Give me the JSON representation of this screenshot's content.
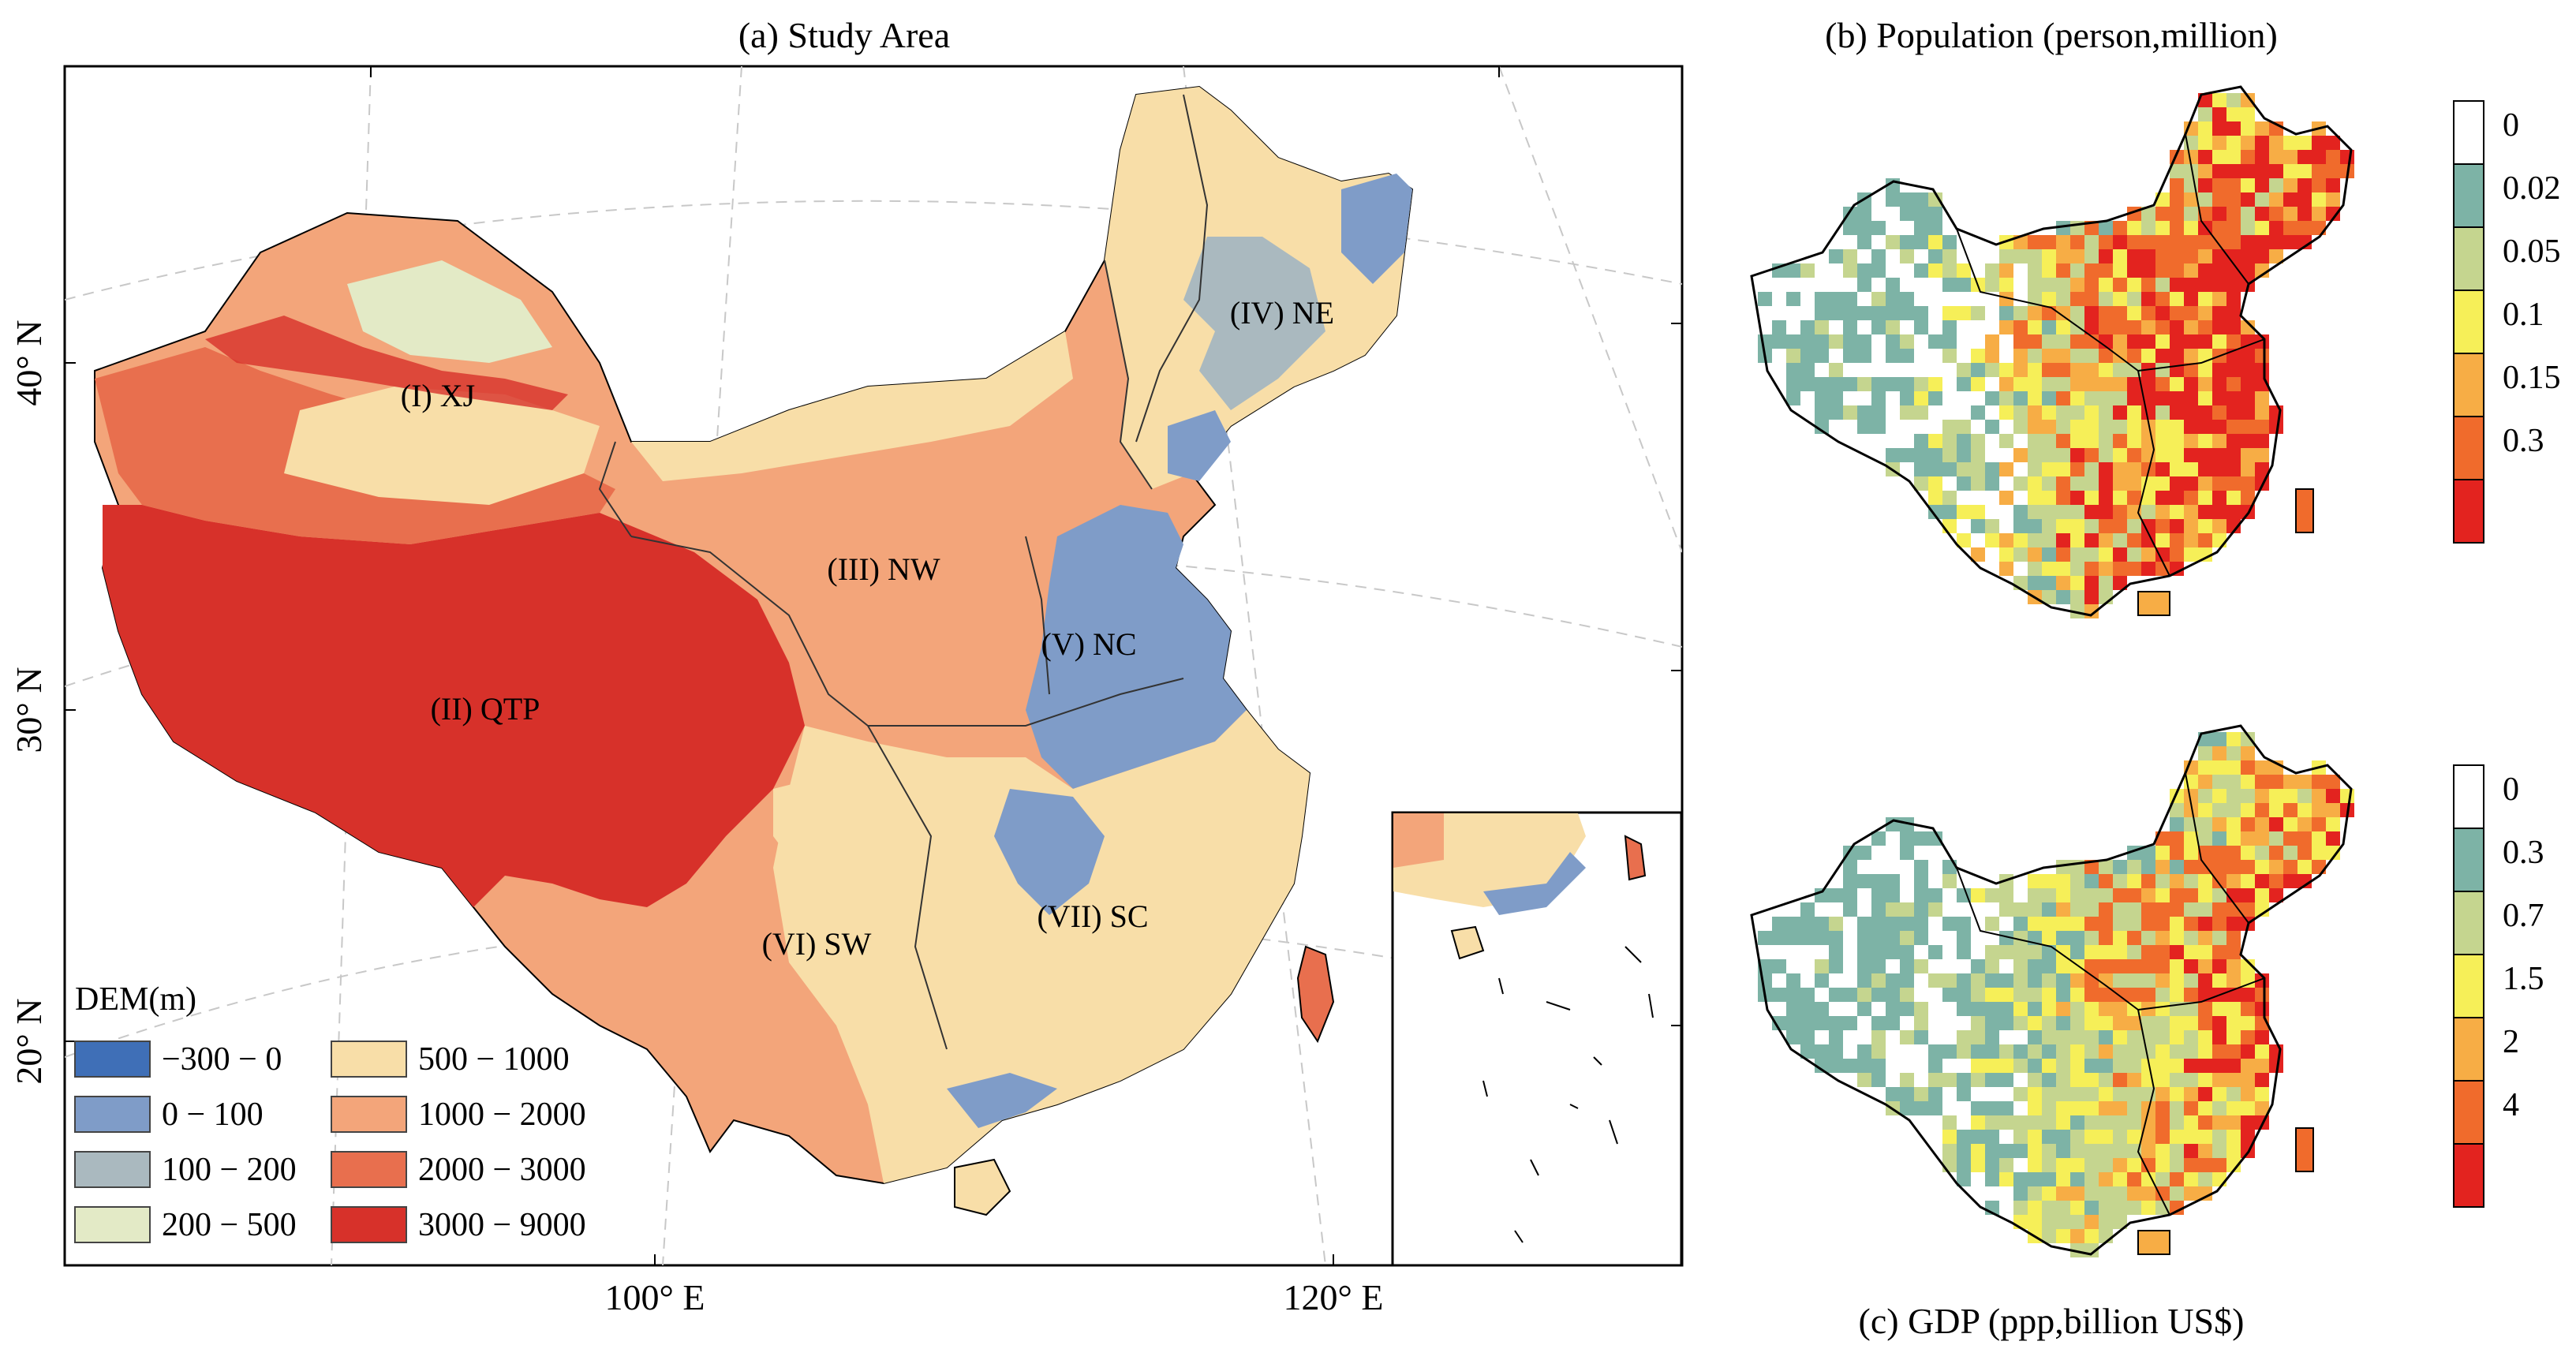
{
  "panel_a": {
    "title": "(a)  Study Area",
    "lat_labels": [
      "40° N",
      "30° N",
      "20° N"
    ],
    "lon_labels": [
      "100° E",
      "120° E"
    ],
    "regions": [
      {
        "id": "xj",
        "label": "(I) XJ"
      },
      {
        "id": "qtp",
        "label": "(II) QTP"
      },
      {
        "id": "nw",
        "label": "(III) NW"
      },
      {
        "id": "ne",
        "label": "(IV) NE"
      },
      {
        "id": "nc",
        "label": "(V) NC"
      },
      {
        "id": "sw",
        "label": "(VI) SW"
      },
      {
        "id": "sc",
        "label": "(VII) SC"
      }
    ],
    "legend": {
      "title": "DEM(m)",
      "items": [
        {
          "label": "−300 − 0",
          "color": "#3f6fb7"
        },
        {
          "label": "0 − 100",
          "color": "#7f9cc8"
        },
        {
          "label": "100 − 200",
          "color": "#aab9bf"
        },
        {
          "label": "200 − 500",
          "color": "#e3eac6"
        },
        {
          "label": "500 − 1000",
          "color": "#f8dea8"
        },
        {
          "label": "1000 − 2000",
          "color": "#f3a57a"
        },
        {
          "label": "2000 − 3000",
          "color": "#e86f4e"
        },
        {
          "label": "3000 − 9000",
          "color": "#d7312a"
        }
      ]
    }
  },
  "panel_b": {
    "title": "(b)  Population (person,million)",
    "legend": [
      {
        "label": "0",
        "color": "#ffffff"
      },
      {
        "label": "0.02",
        "color": "#7db3a6"
      },
      {
        "label": "0.05",
        "color": "#c5d58f"
      },
      {
        "label": "0.1",
        "color": "#f6ef58"
      },
      {
        "label": "0.15",
        "color": "#f7ad45"
      },
      {
        "label": "0.3",
        "color": "#f06b2c"
      },
      {
        "label": "",
        "color": "#e3231f"
      }
    ]
  },
  "panel_c": {
    "title": "(c)  GDP (ppp,billion US$)",
    "legend": [
      {
        "label": "0",
        "color": "#ffffff"
      },
      {
        "label": "0.3",
        "color": "#7db3a6"
      },
      {
        "label": "0.7",
        "color": "#c5d58f"
      },
      {
        "label": "1.5",
        "color": "#f6ef58"
      },
      {
        "label": "2",
        "color": "#f7ad45"
      },
      {
        "label": "4",
        "color": "#f06b2c"
      },
      {
        "label": "",
        "color": "#e3231f"
      }
    ]
  }
}
